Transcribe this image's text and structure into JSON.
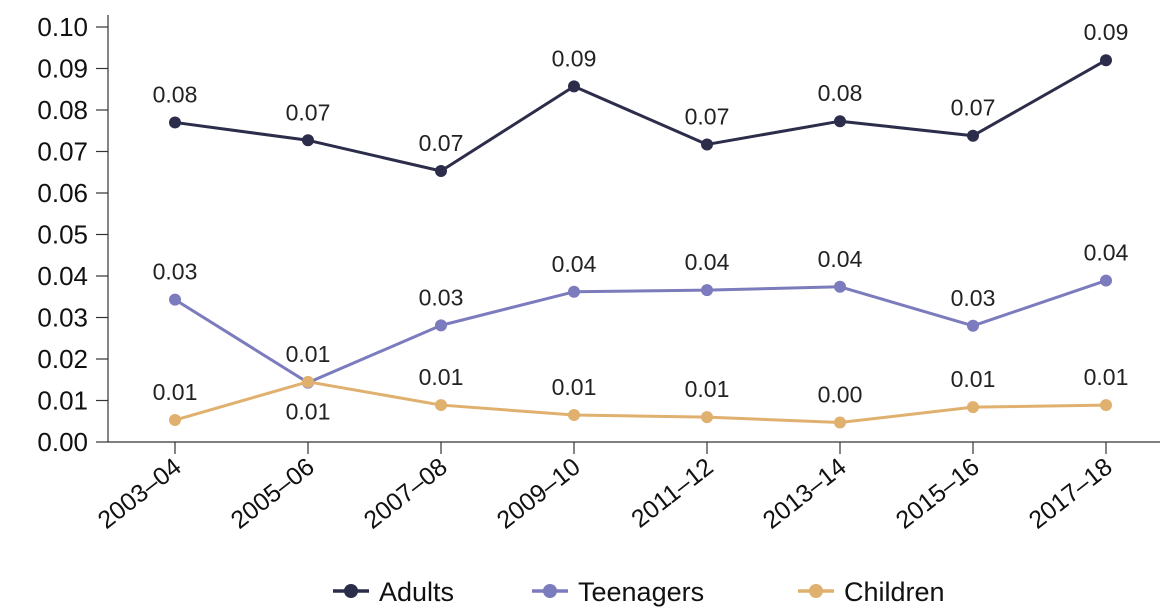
{
  "chart_data": {
    "type": "line",
    "title": "",
    "xlabel": "",
    "ylabel": "",
    "categories": [
      "2003–04",
      "2005–06",
      "2007–08",
      "2009–10",
      "2011–12",
      "2013–14",
      "2015–16",
      "2017–18"
    ],
    "y_ticks": [
      "0.00",
      "0.01",
      "0.02",
      "0.03",
      "0.04",
      "0.05",
      "0.06",
      "0.07",
      "0.08",
      "0.09",
      "0.10"
    ],
    "ylim": [
      0,
      0.1
    ],
    "grid": false,
    "legend_position": "bottom",
    "series": [
      {
        "name": "Adults",
        "color": "#2c2d4a",
        "values": [
          0.077,
          0.0727,
          0.0653,
          0.0857,
          0.0717,
          0.0773,
          0.0738,
          0.092
        ],
        "labels": [
          "0.08",
          "0.07",
          "0.07",
          "0.09",
          "0.07",
          "0.08",
          "0.07",
          "0.09"
        ],
        "label_pos": [
          "above",
          "above",
          "above",
          "above",
          "above",
          "above",
          "above",
          "above"
        ]
      },
      {
        "name": "Teenagers",
        "color": "#7b7bbd",
        "values": [
          0.0343,
          0.0143,
          0.0281,
          0.0362,
          0.0366,
          0.0374,
          0.028,
          0.0389
        ],
        "labels": [
          "0.03",
          "0.01",
          "0.03",
          "0.04",
          "0.04",
          "0.04",
          "0.03",
          "0.04"
        ],
        "label_pos": [
          "above",
          "below",
          "above",
          "above",
          "above",
          "above",
          "above",
          "above"
        ]
      },
      {
        "name": "Children",
        "color": "#e0b06e",
        "values": [
          0.0053,
          0.0145,
          0.0089,
          0.0065,
          0.006,
          0.0047,
          0.0084,
          0.0089
        ],
        "labels": [
          "0.01",
          "0.01",
          "0.01",
          "0.01",
          "0.01",
          "0.00",
          "0.01",
          "0.01"
        ],
        "label_pos": [
          "above",
          "above",
          "above",
          "above",
          "above",
          "above",
          "above",
          "above"
        ]
      }
    ]
  }
}
